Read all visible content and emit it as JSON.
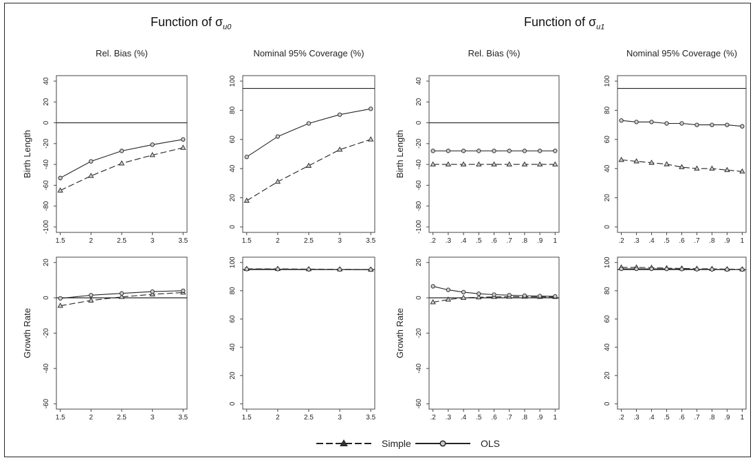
{
  "group_titles": [
    {
      "text": "Function of σ",
      "sub": "u0"
    },
    {
      "text": "Function of σ",
      "sub": "u1"
    }
  ],
  "legend": {
    "items": [
      {
        "label": "Simple",
        "dash": true,
        "marker": "triangle"
      },
      {
        "label": "OLS",
        "dash": false,
        "marker": "circle"
      }
    ]
  },
  "colors": {
    "line": "#222222",
    "marker_fill": "#cccccc"
  },
  "chart_data": [
    {
      "type": "line",
      "title": "Rel. Bias (%)",
      "ylabel": "Birth Length",
      "x": [
        1.5,
        2,
        2.5,
        3,
        3.5
      ],
      "xticks": [
        "1.5",
        "2",
        "2.5",
        "3",
        "3.5"
      ],
      "xlim": [
        1.5,
        3.5
      ],
      "ylim": [
        -100,
        40
      ],
      "yticks": [
        -100,
        -80,
        -60,
        -40,
        -20,
        0,
        20,
        40
      ],
      "refline": 0,
      "series": [
        {
          "name": "Simple",
          "values": [
            -65,
            -51,
            -39,
            -31,
            -24
          ]
        },
        {
          "name": "OLS",
          "values": [
            -53,
            -37,
            -27,
            -21,
            -16
          ]
        }
      ]
    },
    {
      "type": "line",
      "title": "Nominal 95% Coverage (%)",
      "ylabel": "",
      "x": [
        1.5,
        2,
        2.5,
        3,
        3.5
      ],
      "xticks": [
        "1.5",
        "2",
        "2.5",
        "3",
        "3.5"
      ],
      "xlim": [
        1.5,
        3.5
      ],
      "ylim": [
        0,
        100
      ],
      "yticks": [
        0,
        20,
        40,
        60,
        80,
        100
      ],
      "refline": 95,
      "series": [
        {
          "name": "Simple",
          "values": [
            18,
            31,
            42,
            53,
            60
          ]
        },
        {
          "name": "OLS",
          "values": [
            48,
            62,
            71,
            77,
            81
          ]
        }
      ]
    },
    {
      "type": "line",
      "title": "Rel. Bias (%)",
      "ylabel": "Birth Length",
      "x": [
        0.2,
        0.3,
        0.4,
        0.5,
        0.6,
        0.7,
        0.8,
        0.9,
        1
      ],
      "xticks": [
        ".2",
        ".3",
        ".4",
        ".5",
        ".6",
        ".7",
        ".8",
        ".9",
        "1"
      ],
      "xlim": [
        0.2,
        1
      ],
      "ylim": [
        -100,
        40
      ],
      "yticks": [
        -100,
        -80,
        -60,
        -40,
        -20,
        0,
        20,
        40
      ],
      "refline": 0,
      "series": [
        {
          "name": "Simple",
          "values": [
            -40,
            -40,
            -40,
            -40,
            -40,
            -40,
            -40,
            -40,
            -40
          ]
        },
        {
          "name": "OLS",
          "values": [
            -27,
            -27,
            -27,
            -27,
            -27,
            -27,
            -27,
            -27,
            -27
          ]
        }
      ]
    },
    {
      "type": "line",
      "title": "Nominal 95% Coverage (%)",
      "ylabel": "",
      "x": [
        0.2,
        0.3,
        0.4,
        0.5,
        0.6,
        0.7,
        0.8,
        0.9,
        1
      ],
      "xticks": [
        ".2",
        ".3",
        ".4",
        ".5",
        ".6",
        ".7",
        ".8",
        ".9",
        "1"
      ],
      "xlim": [
        0.2,
        1
      ],
      "ylim": [
        0,
        100
      ],
      "yticks": [
        0,
        20,
        40,
        60,
        80,
        100
      ],
      "refline": 95,
      "series": [
        {
          "name": "Simple",
          "values": [
            46,
            45,
            44,
            43,
            41,
            40,
            40,
            39,
            38
          ]
        },
        {
          "name": "OLS",
          "values": [
            73,
            72,
            72,
            71,
            71,
            70,
            70,
            70,
            69
          ]
        }
      ]
    },
    {
      "type": "line",
      "title": "",
      "ylabel": "Growth Rate",
      "x": [
        1.5,
        2,
        2.5,
        3,
        3.5
      ],
      "xticks": [
        "1.5",
        "2",
        "2.5",
        "3",
        "3.5"
      ],
      "xlim": [
        1.5,
        3.5
      ],
      "ylim": [
        -60,
        20
      ],
      "yticks": [
        -60,
        -40,
        -20,
        0,
        20
      ],
      "refline": 0,
      "series": [
        {
          "name": "Simple",
          "values": [
            -4.5,
            -1.5,
            0.5,
            2,
            3
          ]
        },
        {
          "name": "OLS",
          "values": [
            -0.3,
            1.5,
            2.5,
            3.5,
            4
          ]
        }
      ]
    },
    {
      "type": "line",
      "title": "",
      "ylabel": "",
      "x": [
        1.5,
        2,
        2.5,
        3,
        3.5
      ],
      "xticks": [
        "1.5",
        "2",
        "2.5",
        "3",
        "3.5"
      ],
      "xlim": [
        1.5,
        3.5
      ],
      "ylim": [
        0,
        100
      ],
      "yticks": [
        0,
        20,
        40,
        60,
        80,
        100
      ],
      "refline": 95,
      "series": [
        {
          "name": "Simple",
          "values": [
            95.5,
            95.5,
            95.3,
            95.2,
            95
          ]
        },
        {
          "name": "OLS",
          "values": [
            95.3,
            95.3,
            95.1,
            95,
            94.9
          ]
        }
      ]
    },
    {
      "type": "line",
      "title": "",
      "ylabel": "Growth Rate",
      "x": [
        0.2,
        0.3,
        0.4,
        0.5,
        0.6,
        0.7,
        0.8,
        0.9,
        1
      ],
      "xticks": [
        ".2",
        ".3",
        ".4",
        ".5",
        ".6",
        ".7",
        ".8",
        ".9",
        "1"
      ],
      "xlim": [
        0.2,
        1
      ],
      "ylim": [
        -60,
        20
      ],
      "yticks": [
        -60,
        -40,
        -20,
        0,
        20
      ],
      "refline": 0,
      "series": [
        {
          "name": "Simple",
          "values": [
            -2.5,
            -1,
            0,
            0.3,
            0.5,
            0.6,
            0.6,
            0.5,
            0.5
          ]
        },
        {
          "name": "OLS",
          "values": [
            6.5,
            4.5,
            3.2,
            2.3,
            1.8,
            1.5,
            1.2,
            1,
            0.8
          ]
        }
      ]
    },
    {
      "type": "line",
      "title": "",
      "ylabel": "",
      "x": [
        0.2,
        0.3,
        0.4,
        0.5,
        0.6,
        0.7,
        0.8,
        0.9,
        1
      ],
      "xticks": [
        ".2",
        ".3",
        ".4",
        ".5",
        ".6",
        ".7",
        ".8",
        ".9",
        "1"
      ],
      "xlim": [
        0.2,
        1
      ],
      "ylim": [
        0,
        100
      ],
      "yticks": [
        0,
        20,
        40,
        60,
        80,
        100
      ],
      "refline": 95,
      "series": [
        {
          "name": "Simple",
          "values": [
            96.5,
            96.5,
            96.3,
            96,
            95.8,
            95.6,
            95.5,
            95.3,
            95.2
          ]
        },
        {
          "name": "OLS",
          "values": [
            95.5,
            95.5,
            95.5,
            95.4,
            95.3,
            95.2,
            95.1,
            95,
            95
          ]
        }
      ]
    }
  ]
}
